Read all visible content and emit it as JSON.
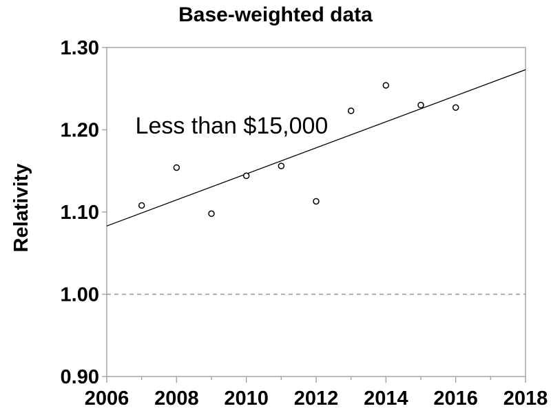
{
  "chart_data": {
    "type": "scatter",
    "title": "Base-weighted data",
    "ylabel": "Relativity",
    "xlabel": "",
    "annotation": {
      "text": "Less than $15,000",
      "x": 2006.82,
      "y": 1.205
    },
    "x": [
      2007,
      2008,
      2009,
      2010,
      2011,
      2012,
      2013,
      2014,
      2015,
      2016
    ],
    "values": [
      1.108,
      1.154,
      1.098,
      1.144,
      1.156,
      1.113,
      1.223,
      1.254,
      1.23,
      1.227
    ],
    "trendline": {
      "x1": 2006,
      "y1": 1.083,
      "x2": 2018,
      "y2": 1.273
    },
    "reference_line": {
      "y": 1.0,
      "style": "dashed"
    },
    "xlim": [
      2006,
      2018
    ],
    "ylim": [
      0.9,
      1.3
    ],
    "xticks_major": [
      2006,
      2008,
      2010,
      2012,
      2014,
      2016,
      2018
    ],
    "xtick_minor_step": 1,
    "yticks": [
      0.9,
      1.0,
      1.1,
      1.2,
      1.3
    ],
    "ytick_decimals": 2,
    "grid": false,
    "legend": "none",
    "marker": "open-circle",
    "colors": {
      "axis": "#a1a1a1",
      "trend_line": "#000000",
      "marker_stroke": "#000000",
      "marker_fill": "#ffffff",
      "refline": "#969696",
      "text": "#000000",
      "background": "#ffffff"
    }
  }
}
